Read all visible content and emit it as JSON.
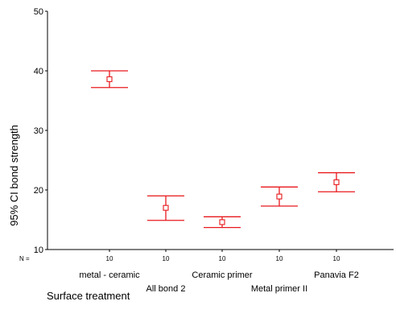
{
  "chart_data": {
    "type": "errorbar",
    "ylabel": "95% CI bond strength",
    "xlabel": "Surface treatment",
    "ylim": [
      10,
      50
    ],
    "yticks": [
      10,
      20,
      30,
      40,
      50
    ],
    "n_label": "N =",
    "categories": [
      "metal - ceramic",
      "All bond 2",
      "Ceramic primer",
      "Metal primer II",
      "Panavia F2"
    ],
    "n": [
      10,
      10,
      10,
      10,
      10
    ],
    "mean": [
      38.6,
      17.0,
      14.6,
      18.9,
      21.3
    ],
    "lower": [
      37.2,
      14.9,
      13.7,
      17.3,
      19.7
    ],
    "upper": [
      40.0,
      19.0,
      15.5,
      20.5,
      22.9
    ],
    "series_color": "#e8191c",
    "grid": false,
    "legend": "none"
  }
}
